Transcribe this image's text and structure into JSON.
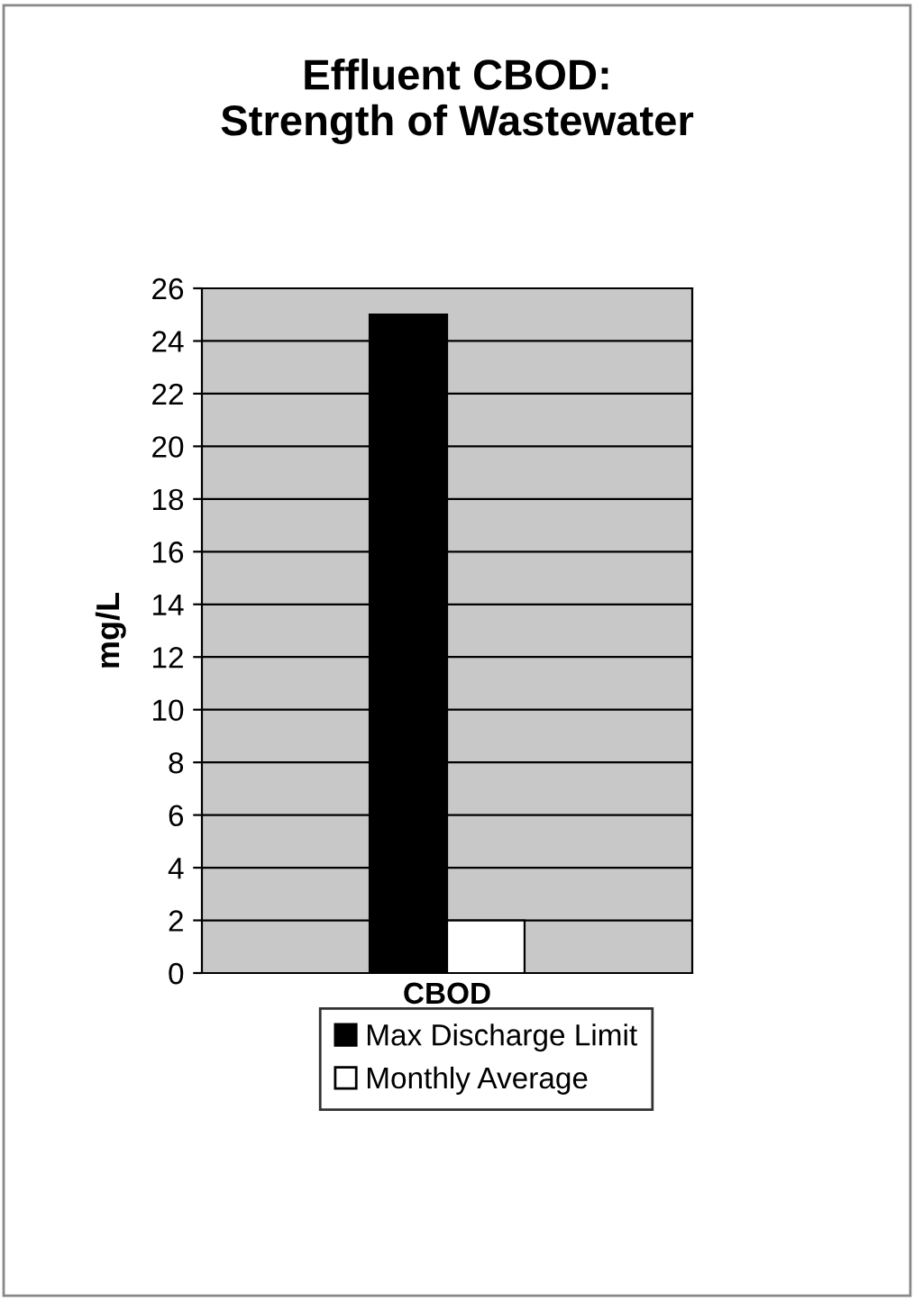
{
  "chart_data": {
    "type": "bar",
    "title": "Effluent CBOD:\nStrength of Wastewater",
    "ylabel": "mg/L",
    "categories": [
      "CBOD"
    ],
    "series": [
      {
        "name": "Max Discharge Limit",
        "color": "#000000",
        "values": [
          25
        ]
      },
      {
        "name": "Monthly Average",
        "color": "#ffffff",
        "values": [
          2
        ]
      }
    ],
    "ylim": [
      0,
      26
    ],
    "yticks": [
      0,
      2,
      4,
      6,
      8,
      10,
      12,
      14,
      16,
      18,
      20,
      22,
      24,
      26
    ],
    "grid": "y",
    "legend": "bottom"
  }
}
